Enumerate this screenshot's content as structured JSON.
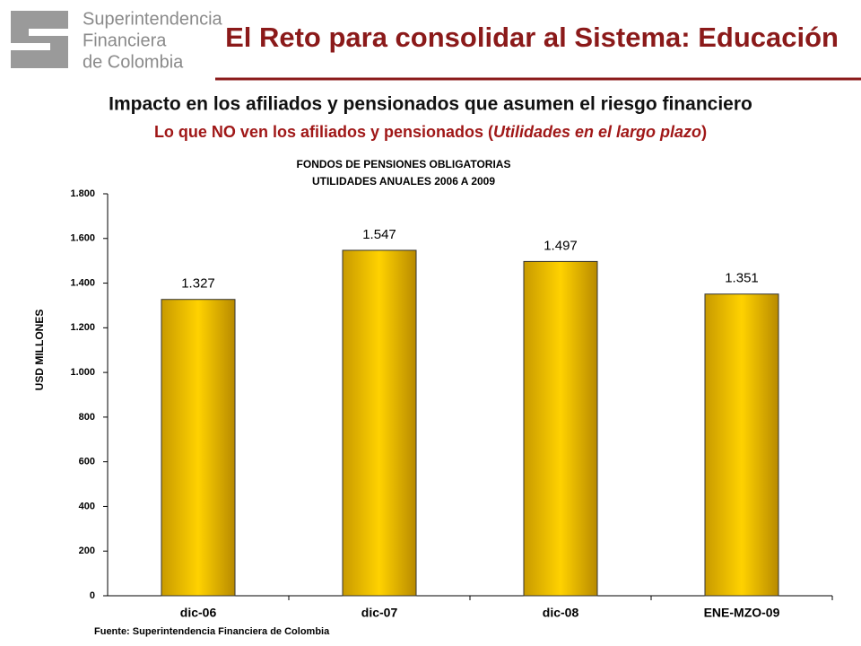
{
  "header": {
    "logo_lines": [
      "Superintendencia",
      "Financiera",
      "de Colombia"
    ],
    "title": "El Reto para consolidar al Sistema: Educación"
  },
  "heading": "Impacto en los afiliados y pensionados que asumen el riesgo financiero",
  "subheading": [
    "Lo que NO ven los afiliados y pensionados (",
    "Utilidades en el largo plazo",
    ")"
  ],
  "source": "Fuente: Superintendencia Financiera de Colombia",
  "chart_data": {
    "type": "bar",
    "title": "FONDOS DE PENSIONES OBLIGATORIAS",
    "subtitle": "UTILIDADES ANUALES 2006 A 2009",
    "y_label": "USD MILLONES",
    "categories": [
      "dic-06",
      "dic-07",
      "dic-08",
      "ENE-MZO-09"
    ],
    "values": [
      1327,
      1547,
      1497,
      1351
    ],
    "value_labels": [
      "1.327",
      "1.547",
      "1.497",
      "1.351"
    ],
    "color": "#f0c000",
    "ylim": [
      0,
      1800
    ],
    "yticks": [
      0,
      200,
      400,
      600,
      800,
      {
        "value": 1000,
        "label": "1.000"
      },
      {
        "value": 1200,
        "label": "1.200"
      },
      {
        "value": 1400,
        "label": "1.400"
      },
      {
        "value": 1600,
        "label": "1.600"
      },
      {
        "value": 1800,
        "label": "1.800"
      }
    ],
    "grid": false
  }
}
